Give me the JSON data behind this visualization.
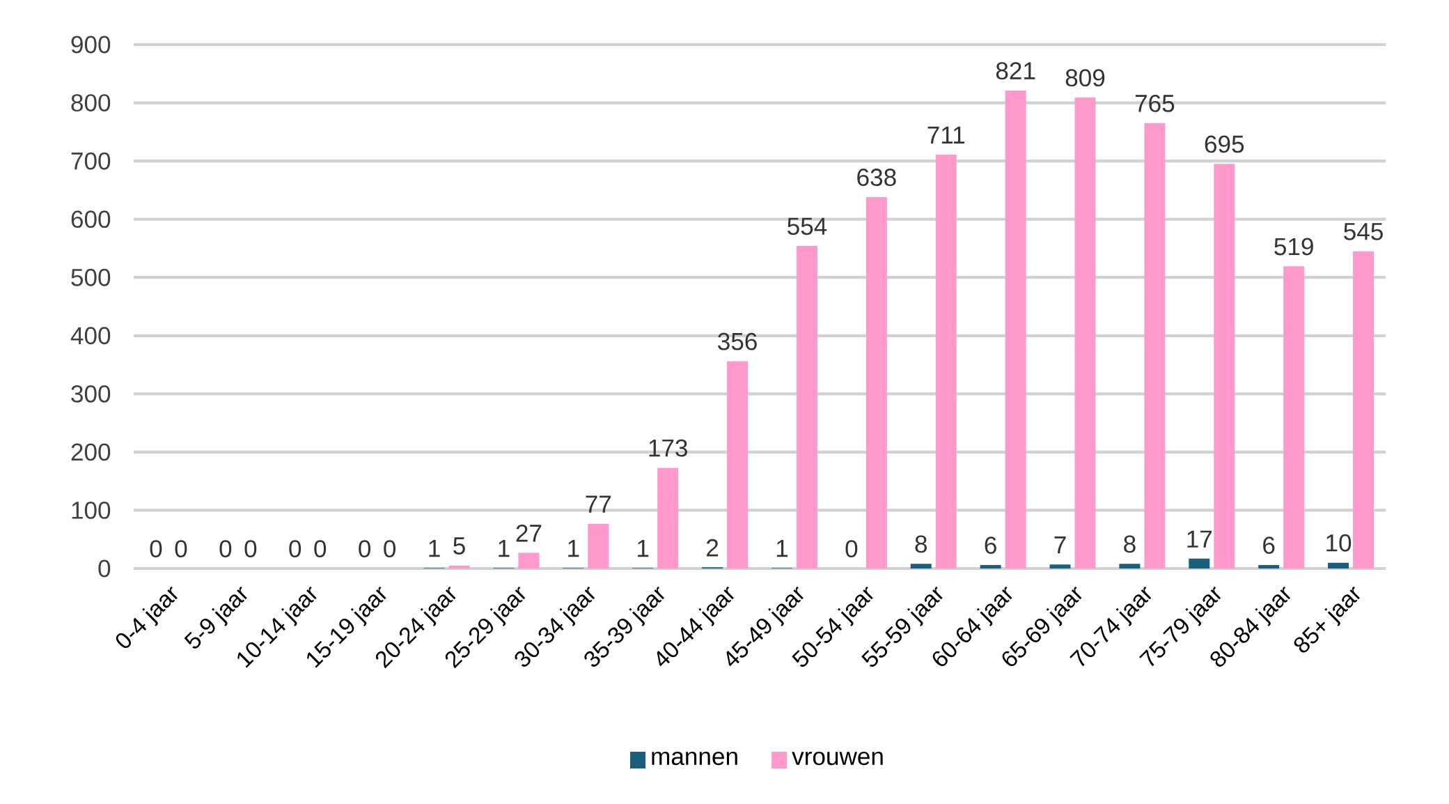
{
  "chart_data": {
    "type": "bar",
    "categories": [
      "0-4 jaar",
      "5-9 jaar",
      "10-14 jaar",
      "15-19 jaar",
      "20-24 jaar",
      "25-29 jaar",
      "30-34 jaar",
      "35-39 jaar",
      "40-44 jaar",
      "45-49 jaar",
      "50-54 jaar",
      "55-59 jaar",
      "60-64 jaar",
      "65-69 jaar",
      "70-74 jaar",
      "75-79 jaar",
      "80-84 jaar",
      "85+ jaar"
    ],
    "series": [
      {
        "name": "mannen",
        "color": "#1b5f80",
        "values": [
          0,
          0,
          0,
          0,
          1,
          1,
          1,
          1,
          2,
          1,
          0,
          8,
          6,
          7,
          8,
          17,
          6,
          10
        ]
      },
      {
        "name": "vrouwen",
        "color": "#ff99cc",
        "values": [
          0,
          0,
          0,
          0,
          5,
          27,
          77,
          173,
          356,
          554,
          638,
          711,
          821,
          809,
          765,
          695,
          519,
          545
        ]
      }
    ],
    "ylim": [
      0,
      900
    ],
    "yticks": [
      0,
      100,
      200,
      300,
      400,
      500,
      600,
      700,
      800,
      900
    ],
    "grid": "y",
    "legend": "bottom",
    "data_labels": true
  }
}
